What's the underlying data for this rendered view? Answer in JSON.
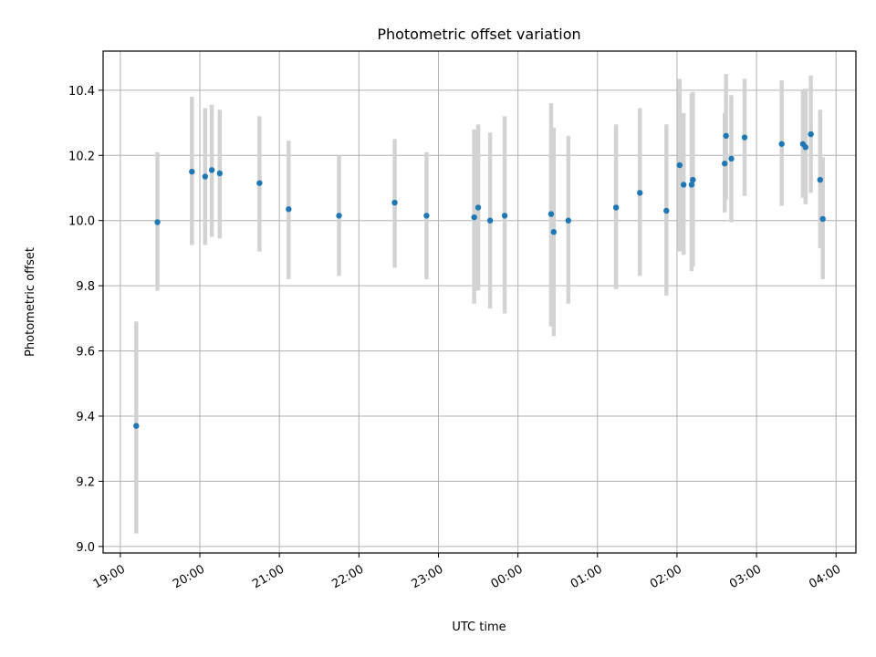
{
  "chart_data": {
    "type": "scatter",
    "title": "Photometric offset variation",
    "xlabel": "UTC time",
    "ylabel": "Photometric offset",
    "xlim": [
      "18:47",
      "04:15"
    ],
    "ylim": [
      8.98,
      10.52
    ],
    "x_ticks": [
      "19:00",
      "20:00",
      "21:00",
      "22:00",
      "23:00",
      "00:00",
      "01:00",
      "02:00",
      "03:00",
      "04:00"
    ],
    "y_ticks": [
      "9.0",
      "9.2",
      "9.4",
      "9.6",
      "9.8",
      "10.0",
      "10.2",
      "10.4"
    ],
    "grid": true,
    "colors": {
      "point": "#1f77b4",
      "errorbar": "#d3d3d3",
      "grid": "#b0b0b0",
      "frame": "#000000"
    },
    "series": [
      {
        "points": [
          {
            "t": "19:12",
            "y": 9.37,
            "lo": 9.04,
            "hi": 9.69
          },
          {
            "t": "19:28",
            "y": 9.995,
            "lo": 9.785,
            "hi": 10.21
          },
          {
            "t": "19:54",
            "y": 10.15,
            "lo": 9.925,
            "hi": 10.38
          },
          {
            "t": "20:04",
            "y": 10.135,
            "lo": 9.925,
            "hi": 10.345
          },
          {
            "t": "20:09",
            "y": 10.155,
            "lo": 9.95,
            "hi": 10.355
          },
          {
            "t": "20:15",
            "y": 10.145,
            "lo": 9.945,
            "hi": 10.34
          },
          {
            "t": "20:45",
            "y": 10.115,
            "lo": 9.905,
            "hi": 10.32
          },
          {
            "t": "21:07",
            "y": 10.035,
            "lo": 9.82,
            "hi": 10.245
          },
          {
            "t": "21:45",
            "y": 10.015,
            "lo": 9.83,
            "hi": 10.2
          },
          {
            "t": "22:27",
            "y": 10.055,
            "lo": 9.855,
            "hi": 10.25
          },
          {
            "t": "22:51",
            "y": 10.015,
            "lo": 9.82,
            "hi": 10.21
          },
          {
            "t": "23:27",
            "y": 10.01,
            "lo": 9.745,
            "hi": 10.28
          },
          {
            "t": "23:30",
            "y": 10.04,
            "lo": 9.785,
            "hi": 10.295
          },
          {
            "t": "23:39",
            "y": 10.0,
            "lo": 9.73,
            "hi": 10.27
          },
          {
            "t": "23:50",
            "y": 10.015,
            "lo": 9.715,
            "hi": 10.32
          },
          {
            "t": "00:25",
            "y": 10.02,
            "lo": 9.675,
            "hi": 10.36
          },
          {
            "t": "00:27",
            "y": 9.965,
            "lo": 9.645,
            "hi": 10.285
          },
          {
            "t": "00:38",
            "y": 10.0,
            "lo": 9.745,
            "hi": 10.26
          },
          {
            "t": "01:14",
            "y": 10.04,
            "lo": 9.79,
            "hi": 10.295
          },
          {
            "t": "01:32",
            "y": 10.085,
            "lo": 9.83,
            "hi": 10.345
          },
          {
            "t": "01:52",
            "y": 10.03,
            "lo": 9.77,
            "hi": 10.295
          },
          {
            "t": "02:02",
            "y": 10.17,
            "lo": 9.905,
            "hi": 10.435
          },
          {
            "t": "02:05",
            "y": 10.11,
            "lo": 9.895,
            "hi": 10.33
          },
          {
            "t": "02:11",
            "y": 10.11,
            "lo": 9.845,
            "hi": 10.39
          },
          {
            "t": "02:12",
            "y": 10.125,
            "lo": 9.86,
            "hi": 10.395
          },
          {
            "t": "02:36",
            "y": 10.175,
            "lo": 10.025,
            "hi": 10.33
          },
          {
            "t": "02:37",
            "y": 10.26,
            "lo": 10.065,
            "hi": 10.45
          },
          {
            "t": "02:41",
            "y": 10.19,
            "lo": 9.995,
            "hi": 10.385
          },
          {
            "t": "02:51",
            "y": 10.255,
            "lo": 10.075,
            "hi": 10.435
          },
          {
            "t": "03:19",
            "y": 10.235,
            "lo": 10.045,
            "hi": 10.43
          },
          {
            "t": "03:35",
            "y": 10.235,
            "lo": 10.07,
            "hi": 10.4
          },
          {
            "t": "03:37",
            "y": 10.225,
            "lo": 10.05,
            "hi": 10.405
          },
          {
            "t": "03:41",
            "y": 10.265,
            "lo": 10.085,
            "hi": 10.445
          },
          {
            "t": "03:48",
            "y": 10.125,
            "lo": 9.915,
            "hi": 10.34
          },
          {
            "t": "03:50",
            "y": 10.005,
            "lo": 9.82,
            "hi": 10.195
          }
        ]
      }
    ]
  }
}
